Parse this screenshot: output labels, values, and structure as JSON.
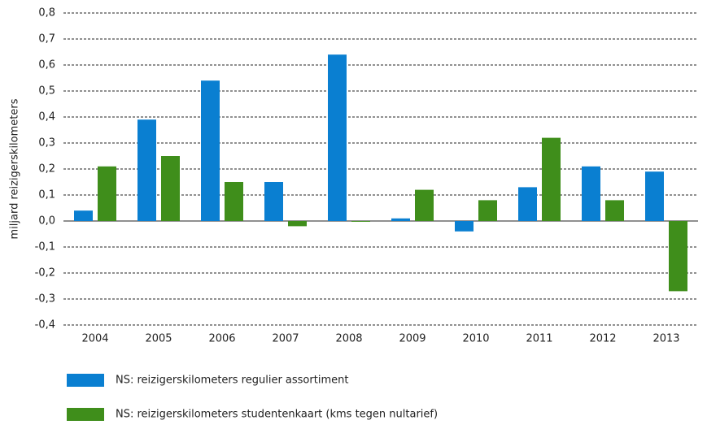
{
  "chart_data": {
    "type": "bar",
    "y_label": "miljard reizigerskilometers",
    "categories": [
      "2004",
      "2005",
      "2006",
      "2007",
      "2008",
      "2009",
      "2010",
      "2011",
      "2012",
      "2013"
    ],
    "series": [
      {
        "name": "NS: reizigerskilometers regulier assortiment",
        "color": "#0a7fd1",
        "values": [
          0.04,
          0.39,
          0.54,
          0.15,
          0.64,
          0.01,
          -0.04,
          0.13,
          0.21,
          0.19
        ]
      },
      {
        "name": "NS: reizigerskilometers studentenkaart (kms tegen nultarief)",
        "color": "#3f8e1b",
        "values": [
          0.21,
          0.25,
          0.15,
          -0.02,
          -0.003,
          0.12,
          0.08,
          0.32,
          0.08,
          -0.27
        ]
      }
    ],
    "ylim": [
      -0.4,
      0.8
    ],
    "yticks": [
      {
        "value": -0.4,
        "label": "-0,4"
      },
      {
        "value": -0.3,
        "label": "-0,3"
      },
      {
        "value": -0.2,
        "label": "-0,2"
      },
      {
        "value": -0.1,
        "label": "-0,1"
      },
      {
        "value": 0,
        "label": "0,0"
      },
      {
        "value": 0.1,
        "label": "0,1"
      },
      {
        "value": 0.2,
        "label": "0,2"
      },
      {
        "value": 0.3,
        "label": "0,3"
      },
      {
        "value": 0.4,
        "label": "0,4"
      },
      {
        "value": 0.5,
        "label": "0,5"
      },
      {
        "value": 0.6,
        "label": "0,6"
      },
      {
        "value": 0.7,
        "label": "0,7"
      },
      {
        "value": 0.8,
        "label": "0,8"
      }
    ],
    "grid": true
  }
}
